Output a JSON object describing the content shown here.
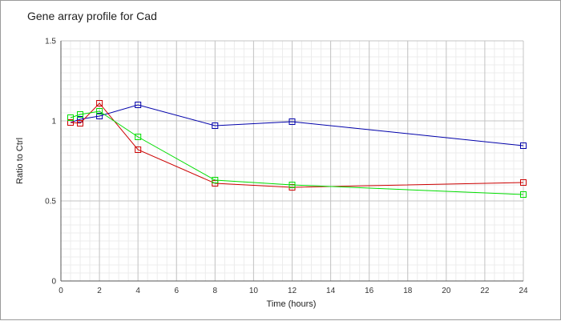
{
  "chart_data": {
    "type": "line",
    "title": "Gene array profile for Cad",
    "xlabel": "Time (hours)",
    "ylabel": "Ratio to Ctrl",
    "xlim": [
      0,
      24
    ],
    "ylim": [
      0,
      1.5
    ],
    "x_ticks": [
      0,
      2,
      4,
      6,
      8,
      10,
      12,
      14,
      16,
      18,
      20,
      22,
      24
    ],
    "y_ticks": [
      0,
      0.5,
      1,
      1.5
    ],
    "y_tick_labels": [
      "0",
      "0.5",
      "1",
      "1.5"
    ],
    "grid": true,
    "marker": "square",
    "series": [
      {
        "color": "#0000aa",
        "x": [
          0.5,
          1,
          2,
          4,
          8,
          12,
          24
        ],
        "y": [
          0.99,
          1.01,
          1.03,
          1.1,
          0.97,
          0.995,
          0.845
        ]
      },
      {
        "color": "#cc0000",
        "x": [
          0.5,
          1,
          2,
          4,
          8,
          12,
          24
        ],
        "y": [
          0.99,
          0.985,
          1.11,
          0.82,
          0.61,
          0.585,
          0.615
        ]
      },
      {
        "color": "#00dd00",
        "x": [
          0.5,
          1,
          2,
          4,
          8,
          12,
          24
        ],
        "y": [
          1.02,
          1.04,
          1.06,
          0.9,
          0.63,
          0.6,
          0.54
        ]
      }
    ]
  }
}
